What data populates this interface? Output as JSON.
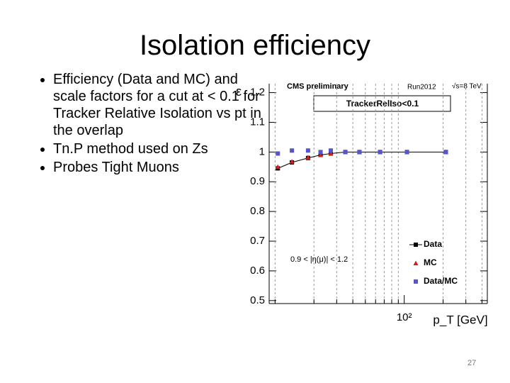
{
  "slide": {
    "title": "Isolation efficiency",
    "bullets": [
      "Efficiency (Data and MC) and scale factors for a cut at < 0.1 for Tracker Relative Isolation vs pt in the overlap",
      "Tn.P method used on Zs",
      "Probes Tight Muons"
    ],
    "page_number": "27"
  },
  "chart_data": {
    "type": "scatter",
    "x_label": "p_T [GeV]",
    "y_label": "ε",
    "annotations": [
      "CMS preliminary",
      "Run2012",
      "√s=8 TeV",
      "TrackerRelIso<0.1",
      "0.9 < |η(μ)| < 1.2"
    ],
    "log_x": true,
    "xlim": [
      9,
      440
    ],
    "xticks": [
      {
        "value": 100,
        "label": "10²"
      }
    ],
    "xminor": [
      10,
      20,
      30,
      40,
      50,
      60,
      70,
      80,
      90,
      200,
      300,
      400
    ],
    "ylim": [
      0.49,
      1.23
    ],
    "yticks": [
      0.5,
      0.6,
      0.7,
      0.8,
      0.9,
      1,
      1.1,
      1.2
    ],
    "grid": true,
    "x": [
      10.5,
      13.5,
      18,
      22.5,
      27,
      35,
      45,
      65,
      105,
      210
    ],
    "series": [
      {
        "name": "Data",
        "color": "#000000",
        "marker": "square",
        "line": true,
        "values": [
          0.945,
          0.965,
          0.98,
          0.99,
          0.995,
          1.0,
          1.0,
          1.0,
          1.0,
          1.0
        ]
      },
      {
        "name": "MC",
        "color": "#cc2222",
        "marker": "triangle",
        "line": false,
        "values": [
          0.95,
          0.968,
          0.982,
          0.99,
          0.996,
          1.0,
          1.0,
          1.0,
          1.0,
          1.0
        ]
      },
      {
        "name": "Data/MC",
        "color": "#5555cc",
        "marker": "square",
        "line": false,
        "values": [
          0.995,
          1.005,
          1.005,
          1.0,
          1.005,
          1.0,
          1.0,
          1.0,
          1.0,
          1.0
        ]
      }
    ]
  }
}
